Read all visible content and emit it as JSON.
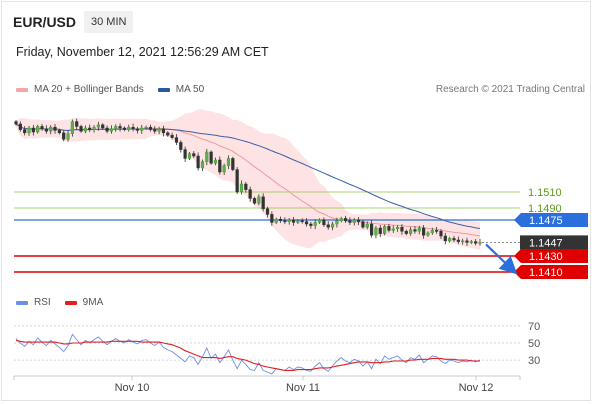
{
  "header": {
    "symbol": "EUR/USD",
    "timeframe": "30 MIN",
    "datetime": "Friday, November 12, 2021 12:56:29 AM CET",
    "credit": "Research © 2021 Trading Central"
  },
  "legend_main": [
    {
      "label": "MA 20 + Bollinger Bands",
      "color": "#f4a6a6"
    },
    {
      "label": "MA 50",
      "color": "#2c58a0"
    }
  ],
  "legend_rsi": [
    {
      "label": "RSI",
      "color": "#6f8fe0"
    },
    {
      "label": "9MA",
      "color": "#e02020"
    }
  ],
  "chart_data": [
    {
      "type": "candlestick",
      "title": "EUR/USD",
      "x_tick_labels": [
        "Nov 10",
        "Nov 11",
        "Nov 12"
      ],
      "x_tick_index": [
        0,
        0.5,
        1
      ],
      "y_range": [
        1.1395,
        1.1625
      ],
      "last_price": 1.1447,
      "levels": [
        {
          "value": 1.151,
          "label": "1.1510",
          "color": "#8cc63f",
          "style": "thin",
          "text_color": "#5a9a1a"
        },
        {
          "value": 1.149,
          "label": "1.1490",
          "color": "#8cc63f",
          "style": "thin",
          "text_color": "#5a9a1a"
        },
        {
          "value": 1.1475,
          "label": "1.1475",
          "color": "#2a6fdb",
          "style": "badge"
        },
        {
          "value": 1.1447,
          "label": "1.1447",
          "color": "#333333",
          "style": "badge"
        },
        {
          "value": 1.143,
          "label": "1.1430",
          "color": "#e00000",
          "style": "badge"
        },
        {
          "value": 1.141,
          "label": "1.1410",
          "color": "#e00000",
          "style": "badge"
        }
      ],
      "close_series": [
        1.1595,
        1.1588,
        1.1584,
        1.159,
        1.1585,
        1.1592,
        1.1589,
        1.1586,
        1.1591,
        1.1587,
        1.1584,
        1.1576,
        1.1583,
        1.1598,
        1.1592,
        1.1586,
        1.159,
        1.1588,
        1.1591,
        1.1594,
        1.159,
        1.1586,
        1.1589,
        1.1592,
        1.159,
        1.1588,
        1.1591,
        1.1589,
        1.1587,
        1.159,
        1.1591,
        1.1588,
        1.1586,
        1.1589,
        1.1584,
        1.1581,
        1.1578,
        1.1572,
        1.1563,
        1.1552,
        1.1558,
        1.1555,
        1.154,
        1.1548,
        1.156,
        1.1546,
        1.155,
        1.1535,
        1.1543,
        1.1552,
        1.1538,
        1.151,
        1.152,
        1.1513,
        1.1502,
        1.1496,
        1.1504,
        1.1489,
        1.1482,
        1.1472,
        1.1476,
        1.1474,
        1.1473,
        1.1475,
        1.1472,
        1.1474,
        1.1473,
        1.147,
        1.1468,
        1.1472,
        1.1475,
        1.1469,
        1.1466,
        1.147,
        1.1474,
        1.1477,
        1.1474,
        1.1472,
        1.1475,
        1.1473,
        1.1466,
        1.147,
        1.1456,
        1.1465,
        1.1458,
        1.1467,
        1.1462,
        1.1464,
        1.1466,
        1.1461,
        1.1458,
        1.1463,
        1.1461,
        1.1465,
        1.1456,
        1.1459,
        1.1462,
        1.1461,
        1.1455,
        1.1449,
        1.1452,
        1.145,
        1.1448,
        1.1449,
        1.1447,
        1.1448,
        1.1446,
        1.1447
      ],
      "projection_target": 1.1412
    },
    {
      "type": "line",
      "title": "RSI",
      "y_tick_labels": [
        "70",
        "50",
        "30"
      ],
      "y_ticks": [
        70,
        50,
        30
      ],
      "y_range": [
        15,
        85
      ],
      "series": [
        {
          "name": "RSI",
          "color": "#6f8fe0",
          "values": [
            55,
            50,
            46,
            52,
            48,
            56,
            51,
            47,
            53,
            49,
            45,
            40,
            47,
            60,
            54,
            48,
            53,
            50,
            54,
            57,
            52,
            48,
            52,
            55,
            52,
            50,
            54,
            51,
            49,
            53,
            54,
            50,
            47,
            51,
            45,
            42,
            40,
            36,
            32,
            28,
            35,
            33,
            25,
            34,
            44,
            32,
            37,
            27,
            34,
            42,
            30,
            20,
            30,
            25,
            19,
            18,
            27,
            18,
            16,
            14,
            20,
            19,
            18,
            22,
            19,
            22,
            21,
            18,
            17,
            23,
            27,
            20,
            17,
            23,
            29,
            33,
            29,
            27,
            31,
            29,
            23,
            28,
            20,
            31,
            26,
            35,
            31,
            33,
            35,
            30,
            27,
            33,
            31,
            36,
            27,
            31,
            35,
            34,
            29,
            26,
            30,
            29,
            27,
            29,
            28,
            30,
            28,
            30
          ]
        },
        {
          "name": "9MA",
          "color": "#e02020",
          "values": [
            53,
            52,
            51,
            51,
            51,
            51,
            51,
            51,
            51,
            51,
            50,
            49,
            49,
            50,
            50,
            50,
            51,
            51,
            51,
            51,
            51,
            51,
            52,
            52,
            52,
            52,
            52,
            52,
            52,
            51,
            51,
            51,
            51,
            51,
            50,
            49,
            48,
            46,
            44,
            41,
            39,
            37,
            35,
            33,
            33,
            33,
            33,
            32,
            33,
            34,
            34,
            32,
            31,
            30,
            28,
            26,
            25,
            23,
            22,
            21,
            20,
            19,
            18,
            18,
            18,
            19,
            19,
            19,
            19,
            20,
            21,
            21,
            21,
            22,
            23,
            24,
            25,
            26,
            27,
            28,
            28,
            28,
            27,
            27,
            27,
            28,
            28,
            29,
            29,
            29,
            29,
            30,
            30,
            31,
            31,
            31,
            32,
            32,
            32,
            31,
            31,
            31,
            30,
            30,
            30,
            29,
            29,
            29
          ]
        }
      ]
    }
  ]
}
